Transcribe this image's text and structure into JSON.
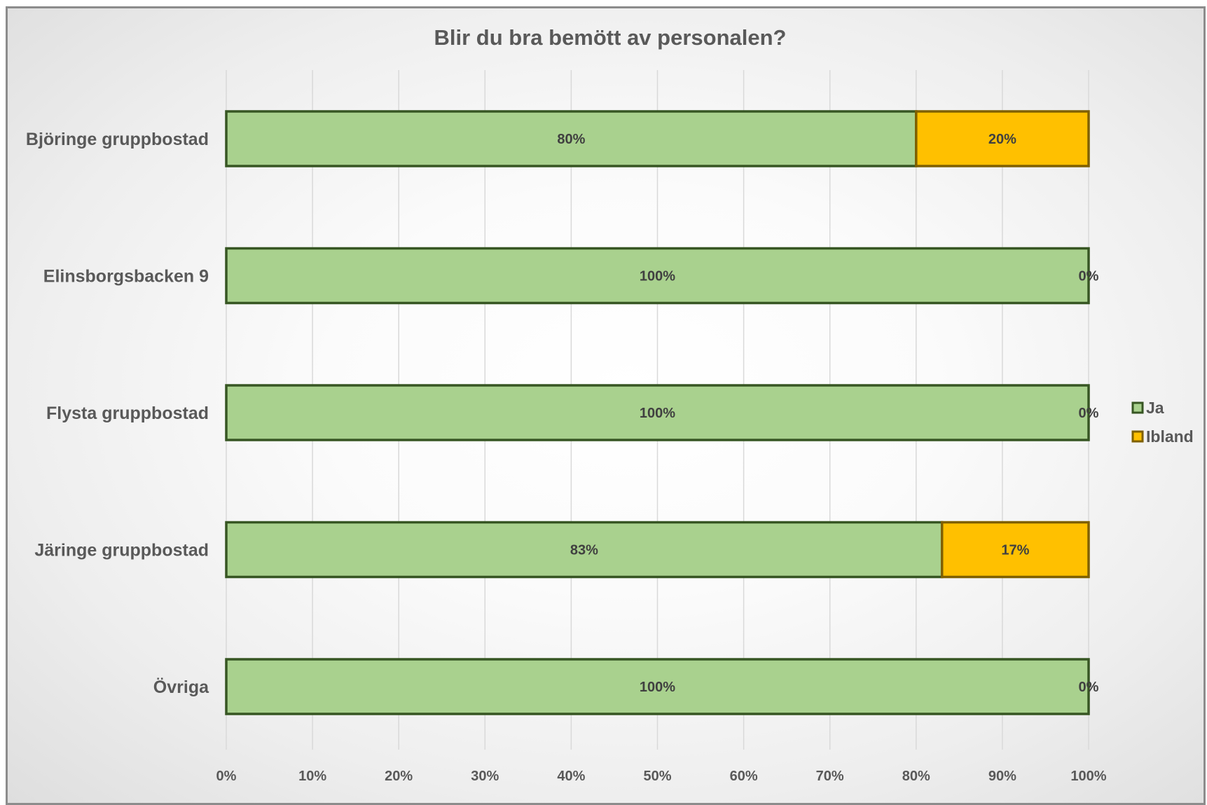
{
  "chart_data": {
    "type": "bar",
    "orientation": "horizontal",
    "stacked": true,
    "percent_stacked": true,
    "title": "Blir du bra bemött av personalen?",
    "categories": [
      "Björinge gruppbostad",
      "Elinsborgsbacken 9",
      "Flysta gruppbostad",
      "Järinge gruppbostad",
      "Övriga"
    ],
    "series": [
      {
        "name": "Ja",
        "values": [
          80,
          100,
          100,
          83,
          100
        ],
        "labels": [
          "80%",
          "100%",
          "100%",
          "83%",
          "100%"
        ],
        "color": "#a9d18e",
        "border": "#375623"
      },
      {
        "name": "Ibland",
        "values": [
          20,
          0,
          0,
          17,
          0
        ],
        "labels": [
          "20%",
          "0%",
          "0%",
          "17%",
          "0%"
        ],
        "color": "#ffc000",
        "border": "#7f6000"
      }
    ],
    "x_ticks": [
      "0%",
      "10%",
      "20%",
      "30%",
      "40%",
      "50%",
      "60%",
      "70%",
      "80%",
      "90%",
      "100%"
    ],
    "xlim": [
      0,
      100
    ],
    "grid": "vertical",
    "legend_position": "right"
  }
}
